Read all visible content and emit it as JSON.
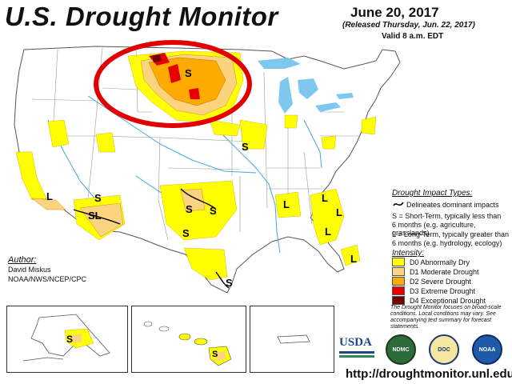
{
  "title": "U.S. Drought Monitor",
  "date": "June 20, 2017",
  "released": "(Released Thursday, Jun. 22, 2017)",
  "valid": "Valid 8 a.m. EDT",
  "author": {
    "heading": "Author:",
    "name": "David Miskus",
    "org": "NOAA/NWS/NCEP/CPC"
  },
  "impact": {
    "heading": "Drought Impact Types:",
    "delineates": "Delineates dominant impacts",
    "short_term_1": "S = Short-Term, typically less than",
    "short_term_2": "6 months (e.g. agriculture, grasslands)",
    "long_term_1": "L = Long-Term, typically greater than",
    "long_term_2": "6 months (e.g. hydrology, ecology)"
  },
  "intensity": {
    "heading": "Intensity:",
    "levels": [
      {
        "label": "D0 Abnormally Dry",
        "color": "#ffff00"
      },
      {
        "label": "D1 Moderate Drought",
        "color": "#fcd37f"
      },
      {
        "label": "D2 Severe Drought",
        "color": "#ffaa00"
      },
      {
        "label": "D3 Extreme Drought",
        "color": "#e60000"
      },
      {
        "label": "D4 Exceptional Drought",
        "color": "#730000"
      }
    ]
  },
  "note": "The Drought Monitor focuses on broad-scale conditions. Local conditions may vary. See accompanying text summary for forecast statements.",
  "url": "http://droughtmonitor.unl.edu/",
  "logos": {
    "usda": "USDA",
    "ndmc": "NDMC",
    "doc": "DOC",
    "noaa": "NOAA"
  },
  "map_labels": {
    "S": "S",
    "L": "L",
    "SL": "SL"
  },
  "colors": {
    "highlight_circle": "#e00000",
    "water": "#7ec8f0",
    "rivers": "#49a4e0",
    "borders": "#999999"
  }
}
